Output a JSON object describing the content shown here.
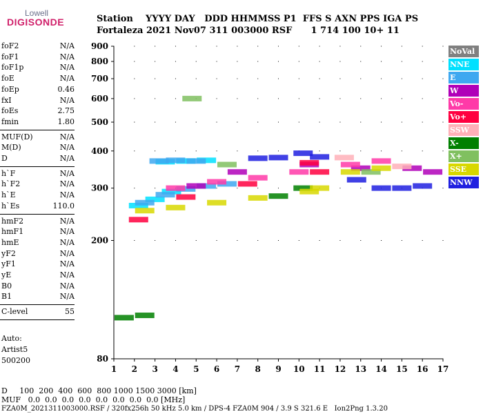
{
  "logo": {
    "top": "Lowell",
    "main": "DIGISONDE"
  },
  "header": {
    "line1": "Station    YYYY DAY   DDD HHMMSS P1  FFS S AXN PPS IGA PS",
    "line2": "Fortaleza 2021 Nov07 311 003000 RSF      1 714 100 10+ 11"
  },
  "params": [
    {
      "group": [
        {
          "name": "foF2",
          "value": "N/A"
        },
        {
          "name": "foF1",
          "value": "N/A"
        },
        {
          "name": "foF1p",
          "value": "N/A"
        },
        {
          "name": "foE",
          "value": "N/A"
        },
        {
          "name": "foEp",
          "value": "0.46"
        },
        {
          "name": "fxI",
          "value": "N/A"
        },
        {
          "name": "foEs",
          "value": "2.75"
        },
        {
          "name": "fmin",
          "value": "1.80"
        }
      ]
    },
    {
      "group": [
        {
          "name": "MUF(D)",
          "value": "N/A"
        },
        {
          "name": "M(D)",
          "value": "N/A"
        },
        {
          "name": "D",
          "value": "N/A"
        }
      ]
    },
    {
      "group": [
        {
          "name": "h`F",
          "value": "N/A"
        },
        {
          "name": "h`F2",
          "value": "N/A"
        },
        {
          "name": "h`E",
          "value": "N/A"
        },
        {
          "name": "h`Es",
          "value": "110.0"
        }
      ]
    },
    {
      "group": [
        {
          "name": "hmF2",
          "value": "N/A"
        },
        {
          "name": "hmF1",
          "value": "N/A"
        },
        {
          "name": "hmE",
          "value": "N/A"
        },
        {
          "name": "yF2",
          "value": "N/A"
        },
        {
          "name": "yF1",
          "value": "N/A"
        },
        {
          "name": "yE",
          "value": "N/A"
        },
        {
          "name": "B0",
          "value": "N/A"
        },
        {
          "name": "B1",
          "value": "N/A"
        }
      ]
    },
    {
      "group": [
        {
          "name": "C-level",
          "value": "55"
        }
      ]
    }
  ],
  "side_notes": [
    "Auto:",
    "Artist5",
    "500200"
  ],
  "legend": [
    {
      "label": "NoVal",
      "color": "#808080"
    },
    {
      "label": "NNE",
      "color": "#00e0ff"
    },
    {
      "label": "E",
      "color": "#3ea8f0"
    },
    {
      "label": "W",
      "color": "#b000b8"
    },
    {
      "label": "Vo-",
      "color": "#ff3aa8"
    },
    {
      "label": "Vo+",
      "color": "#ff0040"
    },
    {
      "label": "SSW",
      "color": "#ffb0b8"
    },
    {
      "label": "X-",
      "color": "#008000"
    },
    {
      "label": "X+",
      "color": "#80c060"
    },
    {
      "label": "SSE",
      "color": "#d8d800"
    },
    {
      "label": "NNW",
      "color": "#2020e0"
    }
  ],
  "footer": {
    "dist_line": "D     100  200  400  600  800 1000 1500 3000 [km]",
    "muf_line": "MUF   0.0  0.0  0.0  0.0  0.0  0.0  0.0  0.0 [MHz]",
    "info_line": "FZA0M_2021311003000.RSF / 320fx256h 50 kHz 5.0 km / DPS-4 FZA0M 904 / 3.9 S 321.6 E   Ion2Png 1.3.20"
  },
  "chart_data": {
    "type": "scatter",
    "title": "",
    "xlabel": "",
    "ylabel": "",
    "xlim": [
      1,
      17
    ],
    "ylim": [
      80,
      900
    ],
    "y_scale": "log",
    "x_ticks": [
      1,
      2,
      3,
      4,
      5,
      6,
      7,
      8,
      9,
      10,
      11,
      12,
      13,
      14,
      15,
      16,
      17
    ],
    "y_ticks": [
      80,
      200,
      300,
      400,
      500,
      600,
      700,
      800,
      900
    ],
    "grid": true,
    "legend_position": "right",
    "series": [
      {
        "name": "NNE",
        "points": [
          [
            3.5,
            368
          ],
          [
            4.5,
            370
          ],
          [
            5.5,
            372
          ],
          [
            2.2,
            262
          ],
          [
            3.0,
            275
          ],
          [
            3.8,
            292
          ]
        ]
      },
      {
        "name": "E",
        "points": [
          [
            2.5,
            268
          ],
          [
            3.5,
            285
          ],
          [
            4.5,
            298
          ],
          [
            5.5,
            305
          ],
          [
            6.5,
            310
          ],
          [
            3.2,
            370
          ],
          [
            4.0,
            372
          ],
          [
            5.0,
            370
          ]
        ]
      },
      {
        "name": "W",
        "points": [
          [
            5.0,
            305
          ],
          [
            7.0,
            340
          ],
          [
            10.5,
            360
          ],
          [
            13.0,
            350
          ],
          [
            15.5,
            350
          ],
          [
            16.5,
            340
          ]
        ]
      },
      {
        "name": "Vo-",
        "points": [
          [
            4.0,
            300
          ],
          [
            6.0,
            315
          ],
          [
            8.0,
            325
          ],
          [
            10.0,
            340
          ],
          [
            12.5,
            360
          ],
          [
            14.0,
            370
          ]
        ]
      },
      {
        "name": "Vo+",
        "points": [
          [
            2.2,
            235
          ],
          [
            4.5,
            280
          ],
          [
            7.5,
            310
          ],
          [
            10.5,
            365
          ],
          [
            11.0,
            340
          ]
        ]
      },
      {
        "name": "SSW",
        "points": [
          [
            12.2,
            380
          ],
          [
            15.0,
            355
          ]
        ]
      },
      {
        "name": "X-",
        "points": [
          [
            1.5,
            110
          ],
          [
            2.5,
            112
          ],
          [
            9.0,
            282
          ],
          [
            10.2,
            300
          ]
        ]
      },
      {
        "name": "X+",
        "points": [
          [
            4.8,
            600
          ],
          [
            6.5,
            360
          ],
          [
            13.5,
            340
          ]
        ]
      },
      {
        "name": "SSE",
        "points": [
          [
            2.5,
            252
          ],
          [
            4.0,
            258
          ],
          [
            6.0,
            268
          ],
          [
            8.0,
            278
          ],
          [
            10.5,
            292
          ],
          [
            11.0,
            300
          ],
          [
            12.5,
            340
          ],
          [
            14.0,
            350
          ]
        ]
      },
      {
        "name": "NNW",
        "points": [
          [
            8.0,
            378
          ],
          [
            9.0,
            380
          ],
          [
            10.2,
            393
          ],
          [
            11.0,
            382
          ],
          [
            12.8,
            320
          ],
          [
            14.0,
            300
          ],
          [
            15.0,
            300
          ],
          [
            16.0,
            305
          ]
        ]
      }
    ]
  }
}
